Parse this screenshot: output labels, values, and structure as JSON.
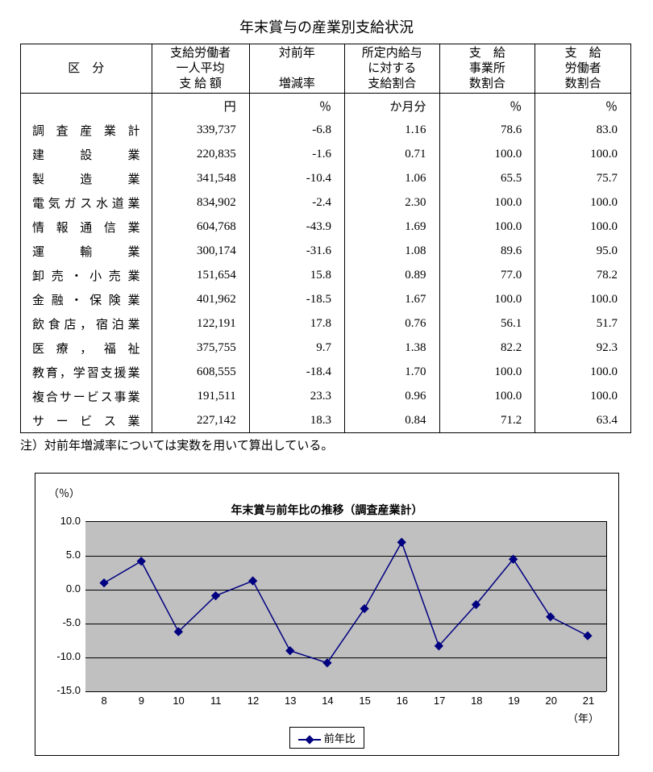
{
  "title": "年末賞与の産業別支給状況",
  "table": {
    "headers": {
      "col0": "区　分",
      "col1_l1": "支給労働者",
      "col1_l2": "一人平均",
      "col1_l3": "支 給 額",
      "col2_l1": "対前年",
      "col2_l2": "",
      "col2_l3": "増減率",
      "col3_l1": "所定内給与",
      "col3_l2": "に対する",
      "col3_l3": "支給割合",
      "col4_l1": "支　給",
      "col4_l2": "事業所",
      "col4_l3": "数割合",
      "col5_l1": "支　給",
      "col5_l2": "労働者",
      "col5_l3": "数割合"
    },
    "units": [
      "",
      "円",
      "％",
      "か月分",
      "％",
      "％"
    ],
    "rows": [
      {
        "label": "調査産業計",
        "c1": "339,737",
        "c2": "-6.8",
        "c3": "1.16",
        "c4": "78.6",
        "c5": "83.0"
      },
      {
        "label": "建設業",
        "c1": "220,835",
        "c2": "-1.6",
        "c3": "0.71",
        "c4": "100.0",
        "c5": "100.0"
      },
      {
        "label": "製造業",
        "c1": "341,548",
        "c2": "-10.4",
        "c3": "1.06",
        "c4": "65.5",
        "c5": "75.7"
      },
      {
        "label": "電気ガス水道業",
        "c1": "834,902",
        "c2": "-2.4",
        "c3": "2.30",
        "c4": "100.0",
        "c5": "100.0"
      },
      {
        "label": "情報通信業",
        "c1": "604,768",
        "c2": "-43.9",
        "c3": "1.69",
        "c4": "100.0",
        "c5": "100.0"
      },
      {
        "label": "運輸業",
        "c1": "300,174",
        "c2": "-31.6",
        "c3": "1.08",
        "c4": "89.6",
        "c5": "95.0"
      },
      {
        "label": "卸売・小売業",
        "c1": "151,654",
        "c2": "15.8",
        "c3": "0.89",
        "c4": "77.0",
        "c5": "78.2"
      },
      {
        "label": "金融・保険業",
        "c1": "401,962",
        "c2": "-18.5",
        "c3": "1.67",
        "c4": "100.0",
        "c5": "100.0"
      },
      {
        "label": "飲食店，宿泊業",
        "c1": "122,191",
        "c2": "17.8",
        "c3": "0.76",
        "c4": "56.1",
        "c5": "51.7"
      },
      {
        "label": "医療，福祉",
        "c1": "375,755",
        "c2": "9.7",
        "c3": "1.38",
        "c4": "82.2",
        "c5": "92.3"
      },
      {
        "label": "教育，学習支援業",
        "c1": "608,555",
        "c2": "-18.4",
        "c3": "1.70",
        "c4": "100.0",
        "c5": "100.0"
      },
      {
        "label": "複合サービス事業",
        "c1": "191,511",
        "c2": "23.3",
        "c3": "0.96",
        "c4": "100.0",
        "c5": "100.0"
      },
      {
        "label": "サービス業",
        "c1": "227,142",
        "c2": "18.3",
        "c3": "0.84",
        "c4": "71.2",
        "c5": "63.4"
      }
    ]
  },
  "note": "注）対前年増減率については実数を用いて算出している。",
  "chart": {
    "title": "年末賞与前年比の推移（調査産業計）",
    "y_unit": "（％）",
    "x_unit": "（年）",
    "legend_label": "前年比",
    "type": "line",
    "ylim": [
      -15,
      10
    ],
    "ytick_step": 5,
    "yticks": [
      "10.0",
      "5.0",
      "0.0",
      "-5.0",
      "-10.0",
      "-15.0"
    ],
    "x_labels": [
      "8",
      "9",
      "10",
      "11",
      "12",
      "13",
      "14",
      "15",
      "16",
      "17",
      "18",
      "19",
      "20",
      "21"
    ],
    "values": [
      1.0,
      4.2,
      -6.2,
      -0.9,
      1.3,
      -9.0,
      -10.8,
      -2.8,
      7.0,
      -8.3,
      -2.2,
      4.5,
      -4.0,
      -6.8
    ],
    "line_color": "#000080",
    "marker_color": "#000080",
    "background_color": "#c0c0c0",
    "grid_color": "#000000",
    "line_width": 1.5,
    "marker_size": 8
  }
}
